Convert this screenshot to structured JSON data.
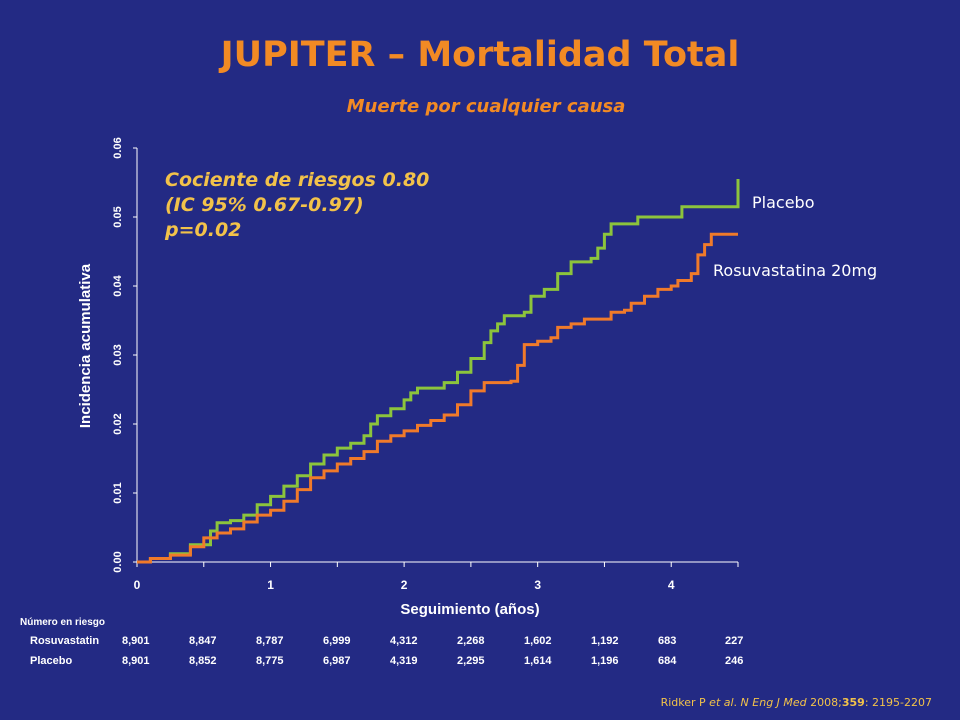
{
  "colors": {
    "background": "#232a84",
    "title": "#f28a24",
    "annotation": "#f2c24a",
    "placebo": "#8cc43c",
    "rosuvastatin": "#f07a2a",
    "axis": "#ffffff"
  },
  "chart_data": {
    "type": "line",
    "title": "JUPITER – Mortalidad Total",
    "subtitle": "Muerte por cualquier causa",
    "xlabel": "Seguimiento (años)",
    "ylabel": "Incidencia acumulativa",
    "xlim": [
      0,
      4.5
    ],
    "ylim": [
      0,
      0.06
    ],
    "x_ticks": [
      0,
      1,
      2,
      3,
      4
    ],
    "y_ticks": [
      "0.00",
      "0.01",
      "0.02",
      "0.03",
      "0.04",
      "0.05",
      "0.06"
    ],
    "grid": false,
    "annotation_lines": [
      "Cociente de riesgos 0.80",
      "(IC 95% 0.67-0.97)",
      "p=0.02"
    ],
    "series": [
      {
        "name": "Placebo",
        "points": [
          [
            0,
            0
          ],
          [
            0.1,
            0.0005
          ],
          [
            0.25,
            0.0012
          ],
          [
            0.4,
            0.0025
          ],
          [
            0.55,
            0.0045
          ],
          [
            0.6,
            0.0057
          ],
          [
            0.7,
            0.006
          ],
          [
            0.8,
            0.0068
          ],
          [
            0.9,
            0.0083
          ],
          [
            1.0,
            0.0095
          ],
          [
            1.1,
            0.011
          ],
          [
            1.2,
            0.0125
          ],
          [
            1.3,
            0.0142
          ],
          [
            1.4,
            0.0155
          ],
          [
            1.5,
            0.0165
          ],
          [
            1.6,
            0.0172
          ],
          [
            1.7,
            0.0183
          ],
          [
            1.75,
            0.02
          ],
          [
            1.8,
            0.0212
          ],
          [
            1.9,
            0.0222
          ],
          [
            2.0,
            0.0235
          ],
          [
            2.05,
            0.0245
          ],
          [
            2.1,
            0.0252
          ],
          [
            2.2,
            0.0252
          ],
          [
            2.3,
            0.026
          ],
          [
            2.4,
            0.0275
          ],
          [
            2.5,
            0.0295
          ],
          [
            2.6,
            0.0318
          ],
          [
            2.65,
            0.0335
          ],
          [
            2.7,
            0.0345
          ],
          [
            2.75,
            0.0357
          ],
          [
            2.9,
            0.0362
          ],
          [
            2.95,
            0.0385
          ],
          [
            3.05,
            0.0395
          ],
          [
            3.15,
            0.0418
          ],
          [
            3.25,
            0.0435
          ],
          [
            3.4,
            0.044
          ],
          [
            3.45,
            0.0455
          ],
          [
            3.5,
            0.0475
          ],
          [
            3.55,
            0.049
          ],
          [
            3.7,
            0.049
          ],
          [
            3.75,
            0.05
          ],
          [
            4.05,
            0.05
          ],
          [
            4.08,
            0.0515
          ],
          [
            4.48,
            0.0515
          ],
          [
            4.5,
            0.0555
          ]
        ]
      },
      {
        "name": "Rosuvastatina 20mg",
        "points": [
          [
            0,
            0
          ],
          [
            0.1,
            0.0005
          ],
          [
            0.25,
            0.001
          ],
          [
            0.4,
            0.0022
          ],
          [
            0.5,
            0.0035
          ],
          [
            0.6,
            0.0042
          ],
          [
            0.7,
            0.0048
          ],
          [
            0.8,
            0.0058
          ],
          [
            0.9,
            0.0068
          ],
          [
            1.0,
            0.0075
          ],
          [
            1.1,
            0.0088
          ],
          [
            1.2,
            0.0105
          ],
          [
            1.3,
            0.0122
          ],
          [
            1.4,
            0.0132
          ],
          [
            1.5,
            0.0142
          ],
          [
            1.6,
            0.015
          ],
          [
            1.7,
            0.016
          ],
          [
            1.8,
            0.0175
          ],
          [
            1.9,
            0.0183
          ],
          [
            2.0,
            0.019
          ],
          [
            2.1,
            0.0198
          ],
          [
            2.2,
            0.0205
          ],
          [
            2.3,
            0.0213
          ],
          [
            2.4,
            0.0228
          ],
          [
            2.5,
            0.0248
          ],
          [
            2.6,
            0.026
          ],
          [
            2.7,
            0.026
          ],
          [
            2.8,
            0.0262
          ],
          [
            2.85,
            0.0285
          ],
          [
            2.9,
            0.0315
          ],
          [
            3.0,
            0.032
          ],
          [
            3.1,
            0.0325
          ],
          [
            3.15,
            0.034
          ],
          [
            3.25,
            0.0345
          ],
          [
            3.35,
            0.0352
          ],
          [
            3.5,
            0.0352
          ],
          [
            3.55,
            0.0362
          ],
          [
            3.65,
            0.0365
          ],
          [
            3.7,
            0.0375
          ],
          [
            3.8,
            0.0385
          ],
          [
            3.9,
            0.0395
          ],
          [
            4.0,
            0.04
          ],
          [
            4.05,
            0.0408
          ],
          [
            4.15,
            0.0418
          ],
          [
            4.2,
            0.0445
          ],
          [
            4.25,
            0.046
          ],
          [
            4.3,
            0.0475
          ],
          [
            4.5,
            0.0475
          ]
        ]
      }
    ],
    "risk_table": {
      "header": "Número en riesgo",
      "rows": [
        {
          "label": "Rosuvastatin",
          "values": [
            "8,901",
            "8,847",
            "8,787",
            "6,999",
            "4,312",
            "2,268",
            "1,602",
            "1,192",
            "683",
            "227"
          ]
        },
        {
          "label": "Placebo",
          "values": [
            "8,901",
            "8,852",
            "8,775",
            "6,987",
            "4,319",
            "2,295",
            "1,614",
            "1,196",
            "684",
            "246"
          ]
        }
      ]
    }
  },
  "citation": {
    "prefix": "Ridker P ",
    "etal": "et al",
    "mid": ". ",
    "journal": "N Eng J Med",
    "year": " 2008;",
    "volume": "359",
    "pages": ":  2195-2207"
  }
}
